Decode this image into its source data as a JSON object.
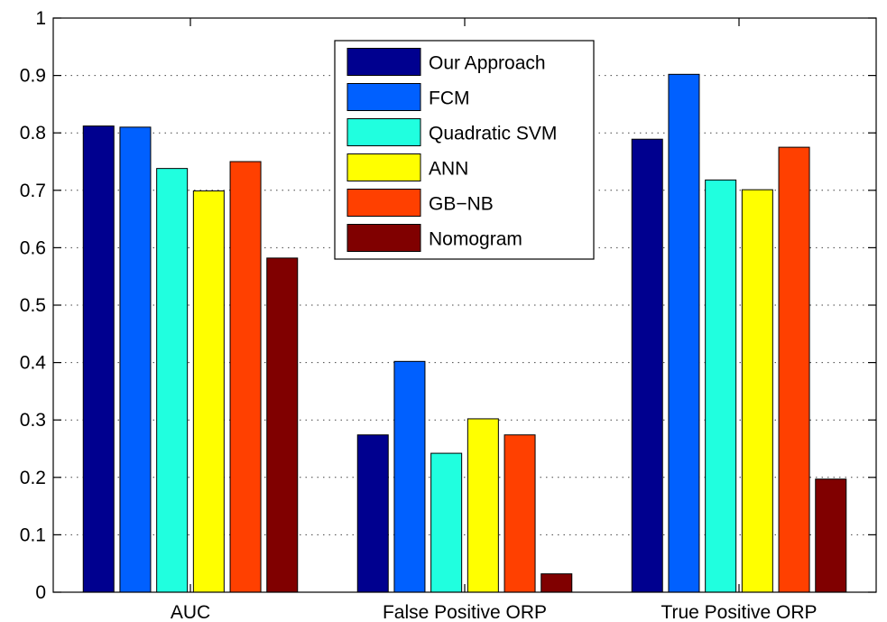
{
  "chart_data": {
    "type": "bar",
    "title": "",
    "xlabel": "",
    "ylabel": "",
    "ylim": [
      0,
      1
    ],
    "yticks": [
      "0",
      "0.1",
      "0.2",
      "0.3",
      "0.4",
      "0.5",
      "0.6",
      "0.7",
      "0.8",
      "0.9",
      "1"
    ],
    "grid": true,
    "legend_position": "top-center",
    "categories": [
      "AUC",
      "False Positive ORP",
      "True Positive ORP"
    ],
    "series": [
      {
        "name": "Our Approach",
        "color": "#00008f",
        "values": [
          0.812,
          0.274,
          0.789
        ]
      },
      {
        "name": "FCM",
        "color": "#0060ff",
        "values": [
          0.81,
          0.402,
          0.902
        ]
      },
      {
        "name": "Quadratic SVM",
        "color": "#20ffdf",
        "values": [
          0.738,
          0.242,
          0.718
        ]
      },
      {
        "name": "ANN",
        "color": "#ffff00",
        "values": [
          0.699,
          0.302,
          0.701
        ]
      },
      {
        "name": "GB−NB",
        "color": "#ff4000",
        "values": [
          0.75,
          0.274,
          0.775
        ]
      },
      {
        "name": "Nomogram",
        "color": "#800000",
        "values": [
          0.582,
          0.032,
          0.197
        ]
      }
    ]
  }
}
